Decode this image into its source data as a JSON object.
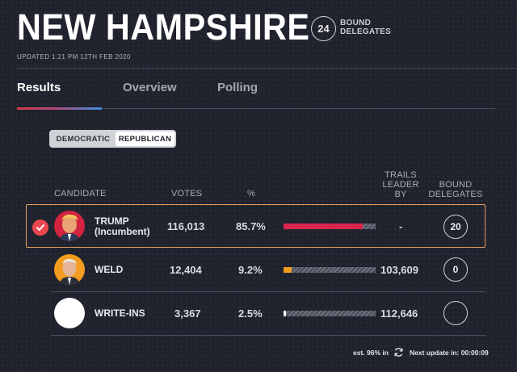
{
  "header": {
    "title": "NEW HAMPSHIRE",
    "delegates_count": "24",
    "delegates_label_1": "BOUND",
    "delegates_label_2": "DELEGATES",
    "updated": "UPDATED 1:21 PM 12TH FEB 2020"
  },
  "tabs": [
    {
      "label": "Results",
      "active": true
    },
    {
      "label": "Overview",
      "active": false
    },
    {
      "label": "Polling",
      "active": false
    }
  ],
  "party_toggle": {
    "democratic": "DEMOCRATIC",
    "republican": "REPUBLICAN",
    "selected": "REPUBLICAN"
  },
  "table": {
    "headers": {
      "candidate": "CANDIDATE",
      "votes": "VOTES",
      "pct": "%",
      "trails_1": "TRAILS",
      "trails_2": "LEADER",
      "trails_3": "BY",
      "bound_1": "BOUND",
      "bound_2": "DELEGATES"
    },
    "rows": [
      {
        "name": "TRUMP",
        "subtitle": "(Incumbent)",
        "votes": "116,013",
        "pct": "85.7%",
        "share": 0.857,
        "trails": "-",
        "delegates": "20",
        "winner": true,
        "bar_color": "#d8264e"
      },
      {
        "name": "WELD",
        "subtitle": "",
        "votes": "12,404",
        "pct": "9.2%",
        "share": 0.092,
        "trails": "103,609",
        "delegates": "0",
        "winner": false,
        "bar_color": "#f39c1f"
      },
      {
        "name": "WRITE-INS",
        "subtitle": "",
        "votes": "3,367",
        "pct": "2.5%",
        "share": 0.025,
        "trails": "112,646",
        "delegates": "",
        "winner": false,
        "bar_color": "#ffffff"
      }
    ]
  },
  "footer": {
    "est": "est. 96% in",
    "next_update": "Next update in: 00:00:09"
  },
  "colors": {
    "background": "#20232e",
    "winner_border": "#e0a162",
    "winner_check": "#e8474f"
  }
}
